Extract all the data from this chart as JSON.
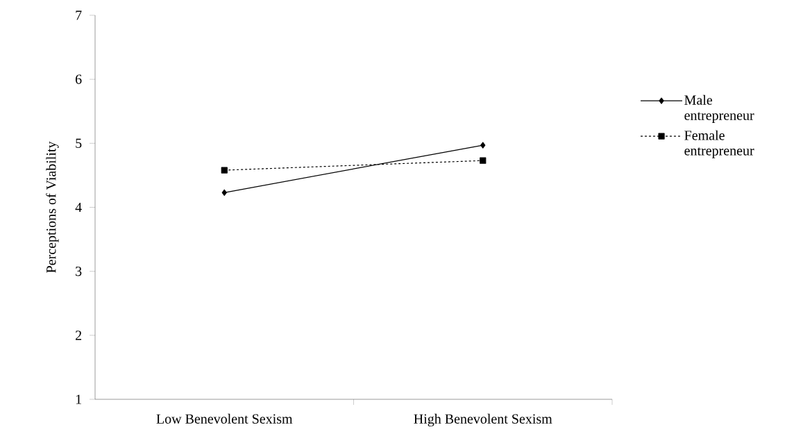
{
  "chart_data": {
    "type": "line",
    "ylabel": "Perceptions of Viability",
    "categories": [
      "Low Benevolent Sexism",
      "High Benevolent Sexism"
    ],
    "series": [
      {
        "name": "Male entrepreneur",
        "color": "#000000",
        "values": [
          4.23,
          4.97
        ],
        "marker": "diamond",
        "line_style": "solid"
      },
      {
        "name": "Female entrepreneur",
        "color": "#000000",
        "values": [
          4.58,
          4.73
        ],
        "marker": "square",
        "line_style": "dashed"
      }
    ],
    "ylim": [
      1,
      7
    ],
    "yticks": [
      1,
      2,
      3,
      4,
      5,
      6,
      7
    ],
    "grid": false,
    "legend": "right"
  }
}
